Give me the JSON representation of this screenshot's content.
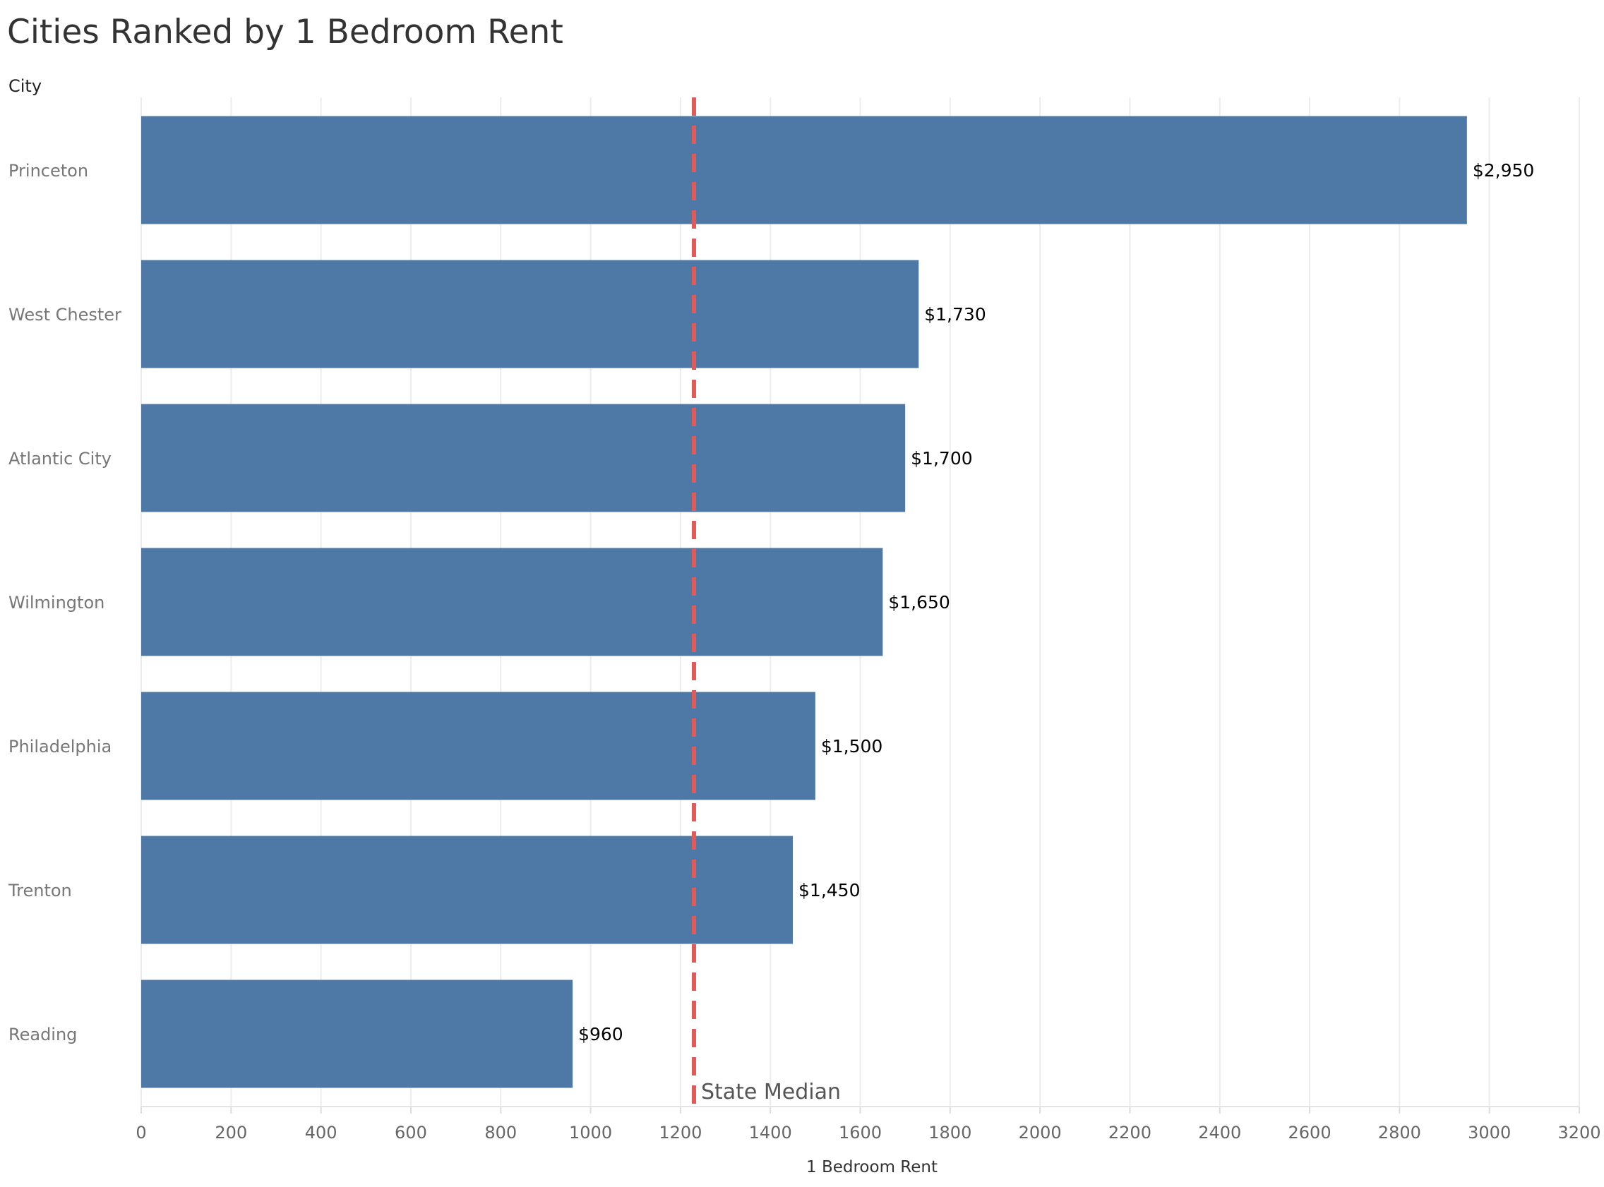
{
  "chart_data": {
    "type": "bar",
    "orientation": "horizontal",
    "title": "Cities Ranked by 1 Bedroom Rent",
    "category_header": "City",
    "categories": [
      "Princeton",
      "West Chester",
      "Atlantic City",
      "Wilmington",
      "Philadelphia",
      "Trenton",
      "Reading"
    ],
    "values": [
      2950,
      1730,
      1700,
      1650,
      1500,
      1450,
      960
    ],
    "data_labels": [
      "$2,950",
      "$1,730",
      "$1,700",
      "$1,650",
      "$1,500",
      "$1,450",
      "$960"
    ],
    "xlabel": "1 Bedroom Rent",
    "xlim": [
      0,
      3200
    ],
    "xticks": [
      0,
      200,
      400,
      600,
      800,
      1000,
      1200,
      1400,
      1600,
      1800,
      2000,
      2200,
      2400,
      2600,
      2800,
      3000,
      3200
    ],
    "reference_line": {
      "label": "State Median",
      "value": 1230,
      "style": "dashed",
      "color": "#e05a5a"
    },
    "bar_color": "#4e79a7",
    "grid": "vertical"
  }
}
